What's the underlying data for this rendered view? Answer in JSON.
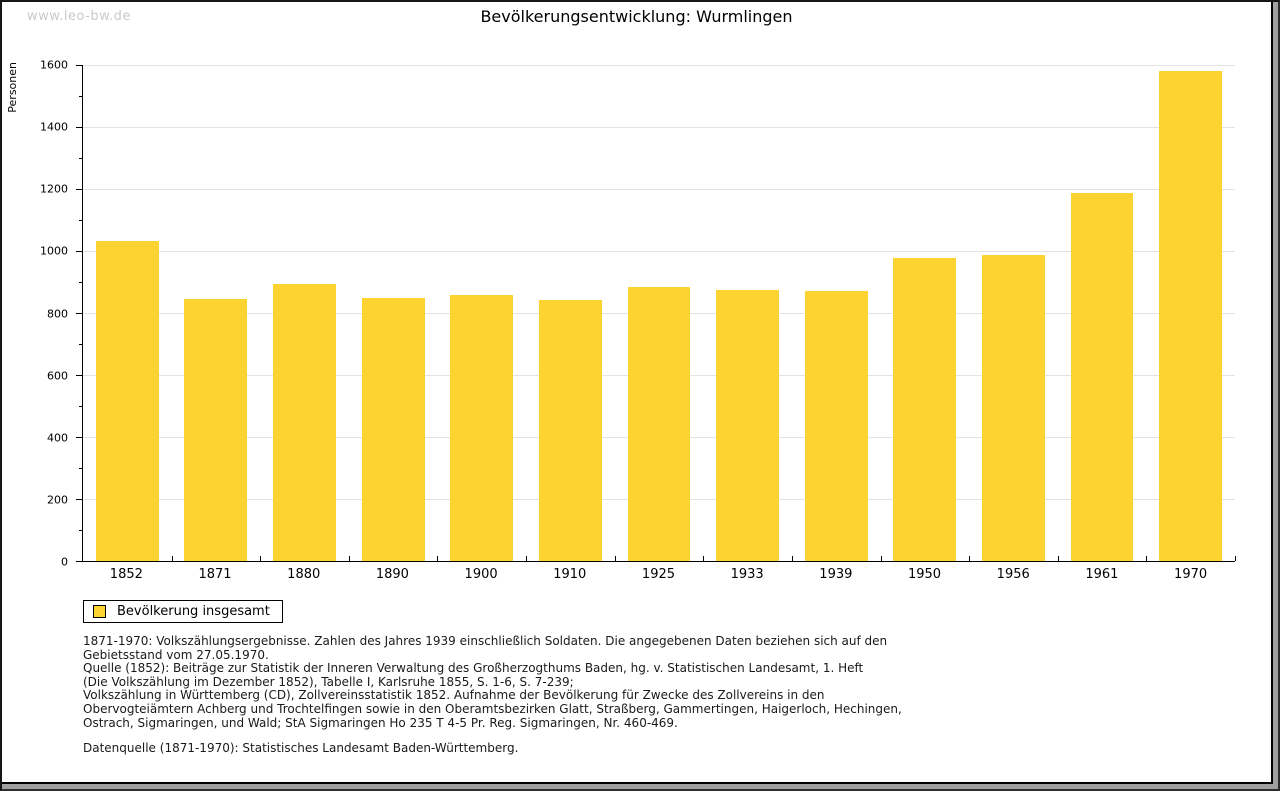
{
  "watermark": "www.leo-bw.de",
  "colors": {
    "bar": "#fcd331",
    "grid": "#e3e3e3",
    "axis": "#000000",
    "watermark": "#c9c9c9",
    "background": "#ffffff"
  },
  "chart_data": {
    "type": "bar",
    "title": "Bevölkerungsentwicklung: Wurmlingen",
    "xlabel": "",
    "ylabel": "Personen",
    "categories": [
      "1852",
      "1871",
      "1880",
      "1890",
      "1900",
      "1910",
      "1925",
      "1933",
      "1939",
      "1950",
      "1956",
      "1961",
      "1970"
    ],
    "series": [
      {
        "name": "Bevölkerung insgesamt",
        "values": [
          1032,
          846,
          893,
          849,
          859,
          842,
          884,
          875,
          871,
          977,
          987,
          1187,
          1580
        ]
      }
    ],
    "ylim": [
      0,
      1600
    ],
    "ytick_step": 200,
    "minor_tick_step": 100,
    "grid": true,
    "legend_position": "bottom-left"
  },
  "legend": {
    "label": "Bevölkerung insgesamt"
  },
  "notes": {
    "lines": [
      "1871-1970: Volkszählungsergebnisse. Zahlen des Jahres 1939 einschließlich Soldaten. Die angegebenen Daten beziehen sich auf den",
      "Gebietsstand vom 27.05.1970.",
      "Quelle (1852): Beiträge zur Statistik der Inneren Verwaltung des Großherzogthums Baden, hg. v. Statistischen Landesamt, 1. Heft",
      "(Die Volkszählung im Dezember 1852), Tabelle I, Karlsruhe 1855, S. 1-6, S. 7-239;",
      "Volkszählung in Württemberg (CD), Zollvereinsstatistik 1852. Aufnahme der Bevölkerung für Zwecke des Zollvereins in den",
      "Obervogteiämtern Achberg und Trochtelfingen sowie in den Oberamtsbezirken Glatt, Straßberg, Gammertingen, Haigerloch, Hechingen,",
      "Ostrach, Sigmaringen, und Wald; StA Sigmaringen Ho 235 T 4-5 Pr. Reg. Sigmaringen, Nr. 460-469."
    ],
    "datasource": "Datenquelle (1871-1970): Statistisches Landesamt Baden-Württemberg."
  }
}
